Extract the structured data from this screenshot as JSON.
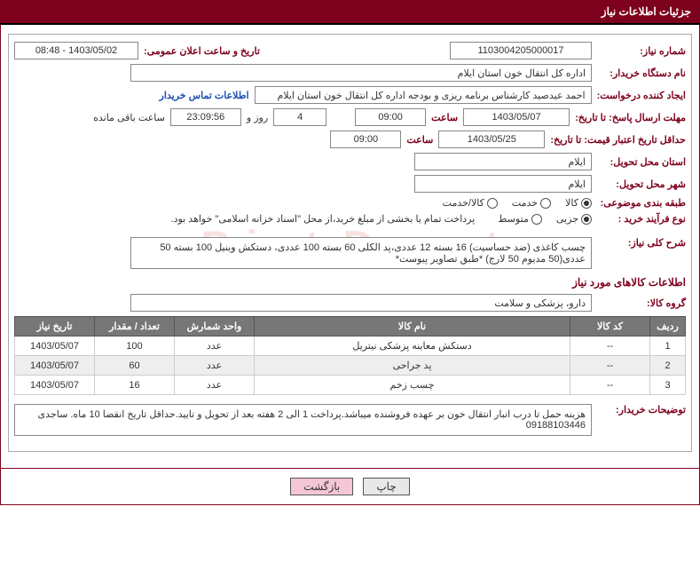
{
  "panel": {
    "title": "جزئیات اطلاعات نیاز"
  },
  "fields": {
    "need_no_label": "شماره نیاز:",
    "need_no": "1103004205000017",
    "announce_label": "تاریخ و ساعت اعلان عمومی:",
    "announce_value": "1403/05/02 - 08:48",
    "buyer_org_label": "نام دستگاه خریدار:",
    "buyer_org": "اداره کل انتقال خون استان ایلام",
    "requester_label": "ایجاد کننده درخواست:",
    "requester": "احمد عیدصید کارشناس برنامه ریزی و بودجه اداره کل انتقال خون استان ایلام",
    "contact_link": "اطلاعات تماس خریدار",
    "deadline_reply_label": "مهلت ارسال پاسخ: تا تاریخ:",
    "deadline_reply_date": "1403/05/07",
    "time_label": "ساعت",
    "deadline_reply_time": "09:00",
    "days_value": "4",
    "days_and": "روز و",
    "remain_time": "23:09:56",
    "remain_label": "ساعت باقی مانده",
    "validity_label": "حداقل تاریخ اعتبار قیمت: تا تاریخ:",
    "validity_date": "1403/05/25",
    "validity_time": "09:00",
    "delivery_province_label": "استان محل تحویل:",
    "delivery_province": "ایلام",
    "delivery_city_label": "شهر محل تحویل:",
    "delivery_city": "ایلام",
    "category_label": "طبقه بندی موضوعی:",
    "purchase_type_label": "نوع فرآیند خرید :",
    "payment_note": "پرداخت تمام یا بخشی از مبلغ خرید،از محل \"اسناد خزانه اسلامی\" خواهد بود.",
    "summary_label": "شرح کلی نیاز:",
    "summary": "چسب کاغذی (ضد حساسیت) 16 بسته 12 عددی،پد الکلی 60 بسته 100 عددی، دستکش وینیل 100 بسته 50 عددی(50 مدیوم 50 لارج)   *طبق تصاویر پیوست*",
    "goods_section": "اطلاعات کالاهای مورد نیاز",
    "goods_group_label": "گروه کالا:",
    "goods_group": "دارو، پزشکی و سلامت",
    "buyer_notes_label": "توضیحات خریدار:",
    "buyer_notes": "هزینه حمل تا درب انبار انتقال خون بر عهده فروشنده میباشد.پرداخت 1 الی 2 هفته بعد از تحویل و تایید.حداقل تاریخ انقضا 10 ماه. ساجدی 09188103446"
  },
  "category_options": {
    "opt1": "کالا",
    "opt2": "خدمت",
    "opt3": "کالا/خدمت"
  },
  "purchase_options": {
    "opt1": "جزیی",
    "opt2": "متوسط"
  },
  "table": {
    "headers": {
      "row": "ردیف",
      "code": "کد کالا",
      "name": "نام کالا",
      "unit": "واحد شمارش",
      "qty": "تعداد / مقدار",
      "date": "تاریخ نیاز"
    },
    "rows": [
      {
        "idx": "1",
        "code": "--",
        "name": "دستکش معاینه پزشکی نیتریل",
        "unit": "عدد",
        "qty": "100",
        "date": "1403/05/07"
      },
      {
        "idx": "2",
        "code": "--",
        "name": "پد جراحی",
        "unit": "عدد",
        "qty": "60",
        "date": "1403/05/07"
      },
      {
        "idx": "3",
        "code": "--",
        "name": "چسب زخم",
        "unit": "عدد",
        "qty": "16",
        "date": "1403/05/07"
      }
    ]
  },
  "buttons": {
    "print": "چاپ",
    "back": "بازگشت"
  },
  "watermark": "PrivateDoc.net"
}
